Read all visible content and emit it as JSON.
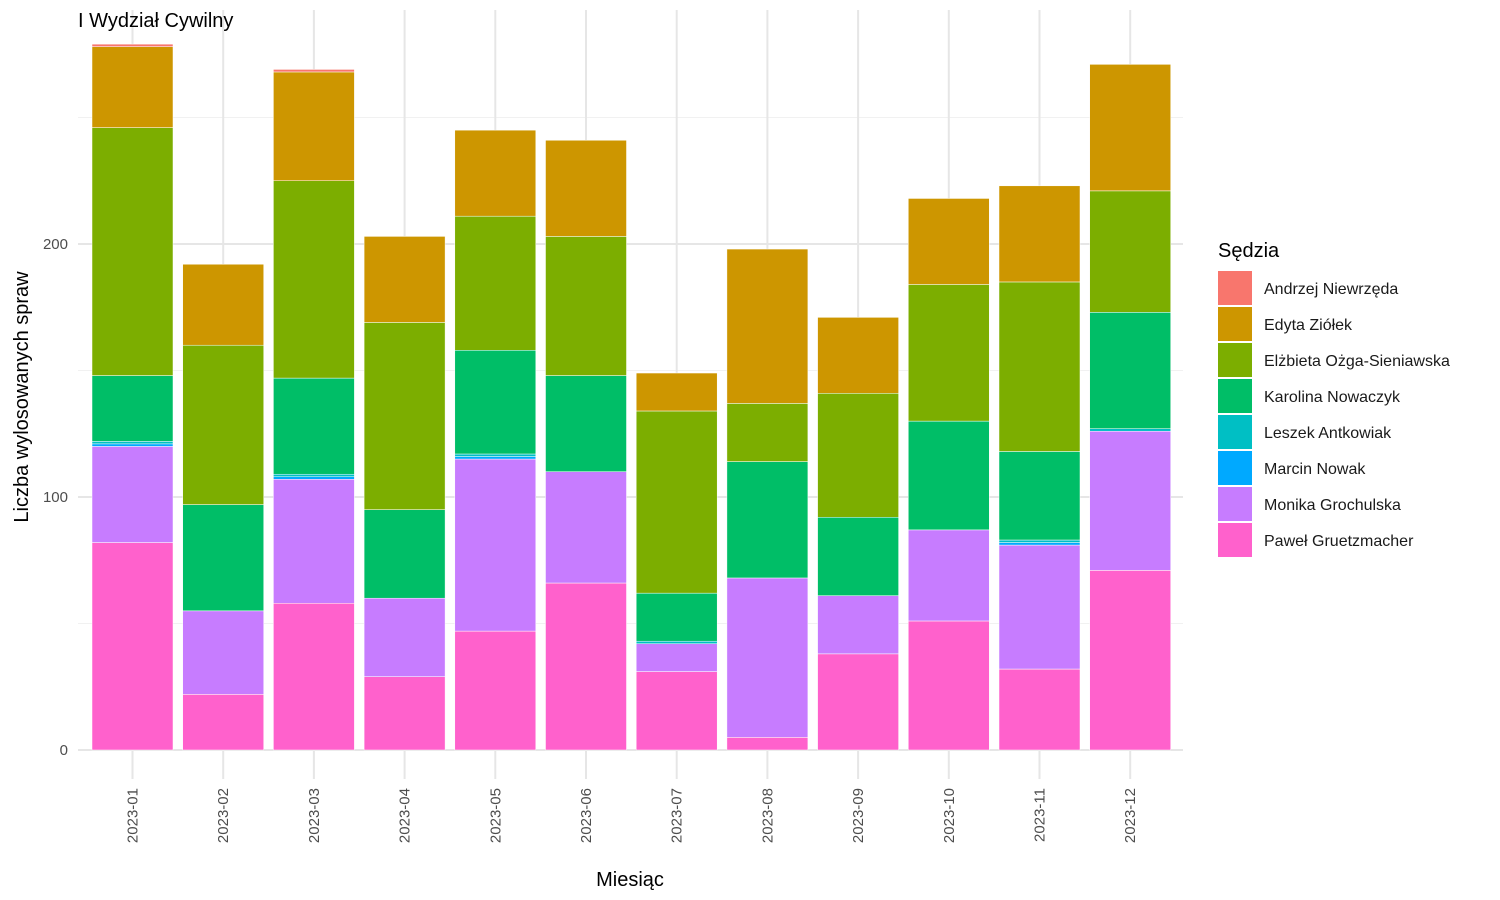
{
  "chart_data": {
    "type": "bar",
    "stacked": true,
    "title": "I Wydział Cywilny",
    "xlabel": "Miesiąc",
    "ylabel": "Liczba wylosowanych spraw",
    "ylim": [
      0,
      290
    ],
    "yticks": [
      0,
      100,
      200
    ],
    "grid": true,
    "legend_title": "Sędzia",
    "legend_position": "right",
    "categories": [
      "2023-01",
      "2023-02",
      "2023-03",
      "2023-04",
      "2023-05",
      "2023-06",
      "2023-07",
      "2023-08",
      "2023-09",
      "2023-10",
      "2023-11",
      "2023-12"
    ],
    "series": [
      {
        "name": "Paweł Gruetzmacher",
        "color": "#FF61CC",
        "values": [
          82,
          22,
          58,
          29,
          47,
          66,
          31,
          5,
          38,
          51,
          32,
          71
        ]
      },
      {
        "name": "Monika Grochulska",
        "color": "#C77CFF",
        "values": [
          38,
          33,
          49,
          31,
          68,
          44,
          11,
          63,
          23,
          36,
          49,
          55
        ]
      },
      {
        "name": "Marcin Nowak",
        "color": "#00A9FF",
        "values": [
          1,
          0,
          1,
          0,
          1,
          0,
          0,
          0,
          0,
          0,
          1,
          0
        ]
      },
      {
        "name": "Leszek Antkowiak",
        "color": "#00BFC4",
        "values": [
          1,
          0,
          1,
          0,
          1,
          0,
          1,
          0,
          0,
          0,
          1,
          1
        ]
      },
      {
        "name": "Karolina Nowaczyk",
        "color": "#00BE67",
        "values": [
          26,
          42,
          38,
          35,
          41,
          38,
          19,
          46,
          31,
          43,
          35,
          46
        ]
      },
      {
        "name": "Elżbieta Ożga-Sieniawska",
        "color": "#7CAE00",
        "values": [
          98,
          63,
          78,
          74,
          53,
          55,
          72,
          23,
          49,
          54,
          67,
          48
        ]
      },
      {
        "name": "Edyta Ziółek",
        "color": "#CD9600",
        "values": [
          32,
          32,
          43,
          34,
          34,
          38,
          15,
          61,
          30,
          34,
          38,
          50
        ]
      },
      {
        "name": "Andrzej Niewrzęda",
        "color": "#F8766D",
        "values": [
          1,
          0,
          1,
          0,
          0,
          0,
          0,
          0,
          0,
          0,
          0,
          0
        ]
      }
    ],
    "legend_order": [
      "Andrzej Niewrzęda",
      "Edyta Ziółek",
      "Elżbieta Ożga-Sieniawska",
      "Karolina Nowaczyk",
      "Leszek Antkowiak",
      "Marcin Nowak",
      "Monika Grochulska",
      "Paweł Gruetzmacher"
    ]
  }
}
